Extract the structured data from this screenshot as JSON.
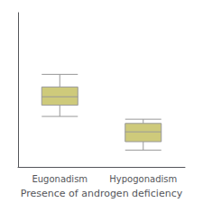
{
  "chart_data": {
    "type": "box",
    "categories": [
      "Eugonadism",
      "Hypogonadism"
    ],
    "values": [
      [
        18.0,
        22.0,
        25.0,
        28.5,
        33.0
      ],
      [
        6.0,
        9.0,
        12.5,
        15.5,
        17.0
      ]
    ],
    "color": "#ceca7b",
    "xlabel": "Presence of androgen deficiency",
    "ylim": [
      0,
      55
    ],
    "grid": false,
    "tick_labels": "x"
  }
}
